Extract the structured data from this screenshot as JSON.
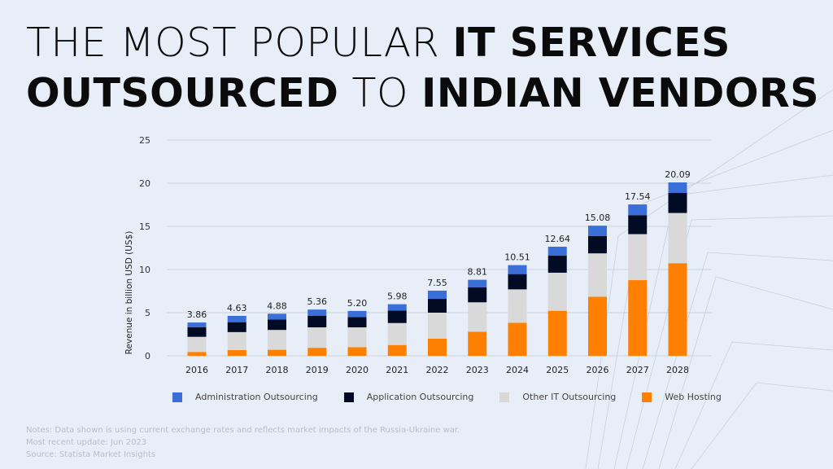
{
  "title": {
    "part1": "THE MOST POPULAR ",
    "part2": "IT SERVICES",
    "part3": "OUTSOURCED",
    "part4": " TO ",
    "part5": "INDIAN VENDORS"
  },
  "chart_data": {
    "type": "bar",
    "stacked": true,
    "categories": [
      "2016",
      "2017",
      "2018",
      "2019",
      "2020",
      "2021",
      "2022",
      "2023",
      "2024",
      "2025",
      "2026",
      "2027",
      "2028"
    ],
    "ylabel": "Revenue in billion USD (US$)",
    "ylim": [
      0,
      25
    ],
    "yticks": [
      0,
      5,
      10,
      15,
      20,
      25
    ],
    "grid": true,
    "legend_position": "bottom",
    "totals": [
      "3.86",
      "4.63",
      "4.88",
      "5.36",
      "5.20",
      "5.98",
      "7.55",
      "8.81",
      "10.51",
      "12.64",
      "15.08",
      "17.54",
      "20.09"
    ],
    "series": [
      {
        "name": "Web Hosting",
        "color": "#ff7f00",
        "values": [
          0.45,
          0.67,
          0.7,
          0.93,
          1.0,
          1.25,
          1.98,
          2.8,
          3.83,
          5.22,
          6.84,
          8.77,
          10.73
        ]
      },
      {
        "name": "Other IT Outsourcing",
        "color": "#d9d9d9",
        "values": [
          1.75,
          2.08,
          2.3,
          2.37,
          2.3,
          2.55,
          3.02,
          3.4,
          3.87,
          4.41,
          5.03,
          5.33,
          5.82
        ]
      },
      {
        "name": "Application Outsourcing",
        "color": "#020b24",
        "values": [
          1.1,
          1.15,
          1.2,
          1.35,
          1.2,
          1.45,
          1.6,
          1.75,
          1.77,
          1.97,
          2.0,
          2.2,
          2.32
        ]
      },
      {
        "name": "Administration Outsourcing",
        "color": "#3a6fd8",
        "values": [
          0.56,
          0.73,
          0.68,
          0.71,
          0.7,
          0.73,
          0.95,
          0.86,
          1.04,
          1.04,
          1.21,
          1.24,
          1.22
        ]
      }
    ],
    "legend_order": [
      "Administration Outsourcing",
      "Application Outsourcing",
      "Other IT Outsourcing",
      "Web Hosting"
    ]
  },
  "notes": {
    "line1": "Notes: Data shown is using current exchange rates and reflects market impacts of the Russia-Ukraine war.",
    "line2": "Most recent update: Jun 2023",
    "line3": "Source: Statista Market Insights"
  }
}
